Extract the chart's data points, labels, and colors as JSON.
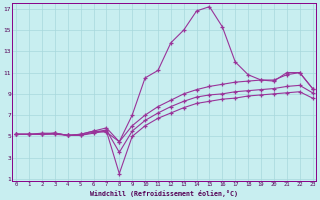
{
  "xlabel": "Windchill (Refroidissement éolien,°C)",
  "bg_color": "#c8eef0",
  "grid_color": "#a8d8dc",
  "line_color": "#993399",
  "xlim_min": -0.3,
  "xlim_max": 23.3,
  "ylim_min": 0.8,
  "ylim_max": 17.5,
  "xticks": [
    0,
    1,
    2,
    3,
    4,
    5,
    6,
    7,
    8,
    9,
    10,
    11,
    12,
    13,
    14,
    15,
    16,
    17,
    18,
    19,
    20,
    21,
    22,
    23
  ],
  "yticks": [
    1,
    3,
    5,
    7,
    9,
    11,
    13,
    15,
    17
  ],
  "line1_x": [
    0,
    1,
    2,
    3,
    4,
    5,
    6,
    7,
    8,
    9,
    10,
    11,
    12,
    13,
    14,
    15,
    16,
    17,
    18,
    19,
    20,
    21,
    22,
    23
  ],
  "line1_y": [
    5.2,
    5.2,
    5.2,
    5.3,
    5.1,
    5.2,
    5.5,
    5.4,
    4.5,
    7.0,
    10.5,
    11.2,
    13.8,
    15.0,
    16.8,
    17.2,
    15.3,
    12.0,
    10.8,
    10.3,
    10.2,
    11.0,
    11.0,
    9.5
  ],
  "line2_x": [
    0,
    1,
    2,
    3,
    4,
    5,
    6,
    7,
    8,
    9,
    10,
    11,
    12,
    13,
    14,
    15,
    16,
    17,
    18,
    19,
    20,
    21,
    22,
    23
  ],
  "line2_y": [
    5.2,
    5.2,
    5.3,
    5.3,
    5.1,
    5.2,
    5.5,
    5.8,
    4.5,
    6.0,
    7.0,
    7.8,
    8.4,
    9.0,
    9.4,
    9.7,
    9.9,
    10.1,
    10.2,
    10.3,
    10.3,
    10.8,
    11.0,
    9.5
  ],
  "line3_x": [
    0,
    1,
    2,
    3,
    4,
    5,
    6,
    7,
    8,
    9,
    10,
    11,
    12,
    13,
    14,
    15,
    16,
    17,
    18,
    19,
    20,
    21,
    22,
    23
  ],
  "line3_y": [
    5.2,
    5.2,
    5.2,
    5.3,
    5.1,
    5.1,
    5.4,
    5.6,
    3.5,
    5.5,
    6.5,
    7.2,
    7.8,
    8.3,
    8.7,
    8.9,
    9.0,
    9.2,
    9.3,
    9.4,
    9.5,
    9.7,
    9.8,
    9.1
  ],
  "line4_x": [
    0,
    1,
    2,
    3,
    4,
    5,
    6,
    7,
    8,
    9,
    10,
    11,
    12,
    13,
    14,
    15,
    16,
    17,
    18,
    19,
    20,
    21,
    22,
    23
  ],
  "line4_y": [
    5.2,
    5.2,
    5.2,
    5.2,
    5.1,
    5.1,
    5.3,
    5.5,
    1.5,
    5.0,
    6.0,
    6.7,
    7.2,
    7.7,
    8.1,
    8.3,
    8.5,
    8.6,
    8.8,
    8.9,
    9.0,
    9.1,
    9.2,
    8.6
  ]
}
